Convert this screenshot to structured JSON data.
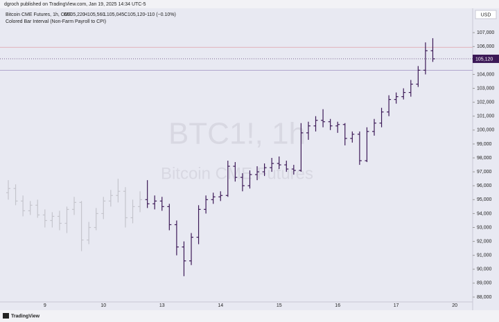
{
  "header": {
    "attribution": "dgroch published on TradingView.com, Jan 19, 2025 14:34 UTC-5",
    "symbol": "Bitcoin CME Futures, 1h, CME",
    "open": "O105,220",
    "high": "H105,560",
    "low": "L105,045",
    "close": "C105,120",
    "change": "−110 (−0.10%)",
    "indicator": "Colored Bar Interval (Non-Farm Payroll to CPI)"
  },
  "watermark": {
    "line1": "BTC1!, 1h",
    "line2": "Bitcoin CME Futures"
  },
  "footer": {
    "brand": "TradingView"
  },
  "chart_data": {
    "type": "ohlc",
    "currency": "USD",
    "categories": [
      null,
      null,
      null,
      null,
      null,
      "9",
      null,
      null,
      null,
      null,
      null,
      null,
      null,
      "10",
      null,
      null,
      null,
      null,
      null,
      null,
      null,
      "13",
      null,
      null,
      null,
      null,
      null,
      null,
      null,
      "14",
      null,
      null,
      null,
      null,
      null,
      null,
      null,
      "15",
      null,
      null,
      null,
      null,
      null,
      null,
      null,
      "16",
      null,
      null,
      null,
      null,
      null,
      null,
      null,
      "17",
      null,
      null,
      null,
      null,
      null,
      null,
      null,
      "20"
    ],
    "open": [
      95500,
      95800,
      94900,
      94200,
      94600,
      93900,
      93500,
      93800,
      93300,
      94300,
      94800,
      92100,
      93000,
      94000,
      94900,
      95300,
      95600,
      93700,
      94500,
      95000,
      94700,
      94900,
      94500,
      93200,
      91600,
      90600,
      92300,
      94300,
      95000,
      95200,
      95300,
      97400,
      96600,
      96000,
      96800,
      97000,
      97300,
      97600,
      97500,
      97200,
      97100,
      99800,
      100300,
      100700,
      100600,
      100300,
      100400,
      99400,
      99700,
      97800,
      99900,
      100500,
      101300,
      102200,
      102400,
      102700,
      103300,
      104300,
      105700,
      null,
      null,
      null
    ],
    "high": [
      96400,
      96100,
      95300,
      94900,
      95000,
      94300,
      94100,
      94200,
      94500,
      95200,
      94900,
      93400,
      94400,
      95200,
      95700,
      96500,
      95900,
      95000,
      95600,
      96400,
      95300,
      95200,
      94700,
      93500,
      92000,
      92600,
      94600,
      95300,
      95500,
      95600,
      97800,
      97700,
      96900,
      97100,
      97400,
      97600,
      98000,
      98100,
      97800,
      97500,
      100500,
      100600,
      101000,
      101500,
      100800,
      100600,
      100500,
      99900,
      99900,
      100200,
      100800,
      101600,
      102500,
      102700,
      103000,
      103600,
      104600,
      106300,
      106600,
      null,
      null,
      null
    ],
    "low": [
      95000,
      94600,
      93800,
      93900,
      93700,
      93000,
      93000,
      92800,
      92600,
      93900,
      91300,
      91800,
      92800,
      93600,
      94500,
      94800,
      93000,
      93300,
      94100,
      94400,
      94300,
      94200,
      92800,
      91000,
      89500,
      90300,
      91800,
      94000,
      94700,
      94900,
      95200,
      96300,
      95600,
      95800,
      96400,
      96700,
      97000,
      97200,
      97000,
      96800,
      97000,
      99300,
      99900,
      100200,
      100000,
      99800,
      98900,
      99100,
      97500,
      97700,
      99600,
      100200,
      101000,
      101900,
      102200,
      102400,
      103100,
      104000,
      104900,
      null,
      null,
      null
    ],
    "close": [
      95800,
      94900,
      94200,
      94600,
      93900,
      93500,
      93800,
      93300,
      94300,
      94800,
      92100,
      93000,
      94000,
      94900,
      95300,
      95600,
      93700,
      94500,
      95000,
      94700,
      94900,
      94500,
      93200,
      91600,
      90600,
      92300,
      94300,
      95000,
      95200,
      95300,
      97400,
      96600,
      96000,
      96800,
      97000,
      97300,
      97600,
      97500,
      97200,
      97100,
      99800,
      100300,
      100700,
      100600,
      100300,
      100400,
      99400,
      99700,
      97800,
      99900,
      100500,
      101300,
      102200,
      102400,
      102700,
      103300,
      104300,
      105700,
      105120,
      null,
      null,
      null
    ],
    "colors": [
      "#c4c4cc",
      "#c4c4cc",
      "#c4c4cc",
      "#c4c4cc",
      "#c4c4cc",
      "#c4c4cc",
      "#c4c4cc",
      "#c4c4cc",
      "#c4c4cc",
      "#c4c4cc",
      "#c4c4cc",
      "#c4c4cc",
      "#c4c4cc",
      "#c4c4cc",
      "#c4c4cc",
      "#c4c4cc",
      "#c4c4cc",
      "#c4c4cc",
      "#c4c4cc",
      "#3b1856",
      "#3b1856",
      "#3b1856",
      "#3b1856",
      "#3b1856",
      "#3b1856",
      "#3b1856",
      "#3b1856",
      "#3b1856",
      "#3b1856",
      "#3b1856",
      "#3b1856",
      "#3b1856",
      "#3b1856",
      "#3b1856",
      "#3b1856",
      "#3b1856",
      "#3b1856",
      "#3b1856",
      "#3b1856",
      "#3b1856",
      "#3b1856",
      "#3b1856",
      "#3b1856",
      "#3b1856",
      "#3b1856",
      "#3b1856",
      "#3b1856",
      "#3b1856",
      "#3b1856",
      "#3b1856",
      "#3b1856",
      "#3b1856",
      "#3b1856",
      "#3b1856",
      "#3b1856",
      "#3b1856",
      "#3b1856",
      "#3b1856",
      "#3b1856",
      "#3b1856",
      "#3b1856",
      "#3b1856"
    ],
    "last_price": {
      "value": 105120,
      "label": "105,120"
    },
    "levels": [
      {
        "value": 105950,
        "color": "#e0a0a8"
      },
      {
        "value": 104300,
        "color": "#a89cc8"
      }
    ],
    "ylim": [
      87850,
      108600
    ],
    "yticks": [
      {
        "value": 88000,
        "label": "88,000"
      },
      {
        "value": 89000,
        "label": "89,000"
      },
      {
        "value": 90000,
        "label": "90,000"
      },
      {
        "value": 91000,
        "label": "91,000"
      },
      {
        "value": 92000,
        "label": "92,000"
      },
      {
        "value": 93000,
        "label": "93,000"
      },
      {
        "value": 94000,
        "label": "94,000"
      },
      {
        "value": 95000,
        "label": "95,000"
      },
      {
        "value": 96000,
        "label": "96,000"
      },
      {
        "value": 97000,
        "label": "97,000"
      },
      {
        "value": 98000,
        "label": "98,000"
      },
      {
        "value": 99000,
        "label": "99,000"
      },
      {
        "value": 100000,
        "label": "100,000"
      },
      {
        "value": 101000,
        "label": "101,000"
      },
      {
        "value": 102000,
        "label": "102,000"
      },
      {
        "value": 103000,
        "label": "103,000"
      },
      {
        "value": 104000,
        "label": "104,000"
      },
      {
        "value": 105000,
        "label": "105,000"
      },
      {
        "value": 106000,
        "label": "106,000"
      },
      {
        "value": 107000,
        "label": "107,000"
      }
    ]
  }
}
